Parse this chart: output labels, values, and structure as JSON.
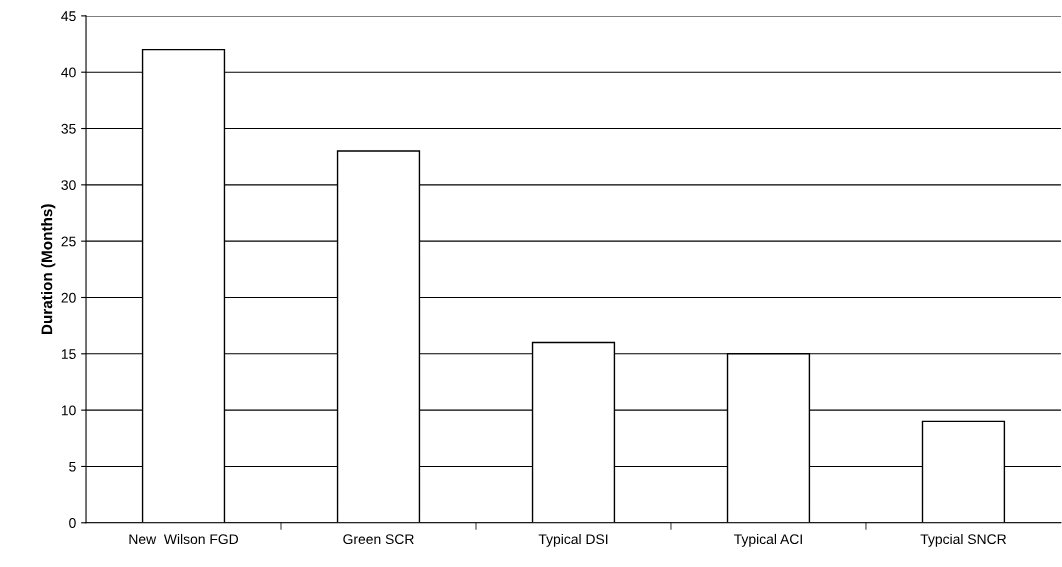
{
  "chart_data": {
    "type": "bar",
    "ylabel": "Duration (Months)",
    "categories": [
      "New  Wilson FGD",
      "Green SCR",
      "Typical DSI",
      "Typical ACI",
      "Typcial SNCR"
    ],
    "values": [
      42,
      33,
      16,
      15,
      9
    ],
    "color": "#ffffff",
    "ylim": [
      0,
      45
    ],
    "yticks": [
      0,
      5,
      10,
      15,
      20,
      25,
      30,
      35,
      40,
      45
    ],
    "grid": "y",
    "legend": false
  }
}
